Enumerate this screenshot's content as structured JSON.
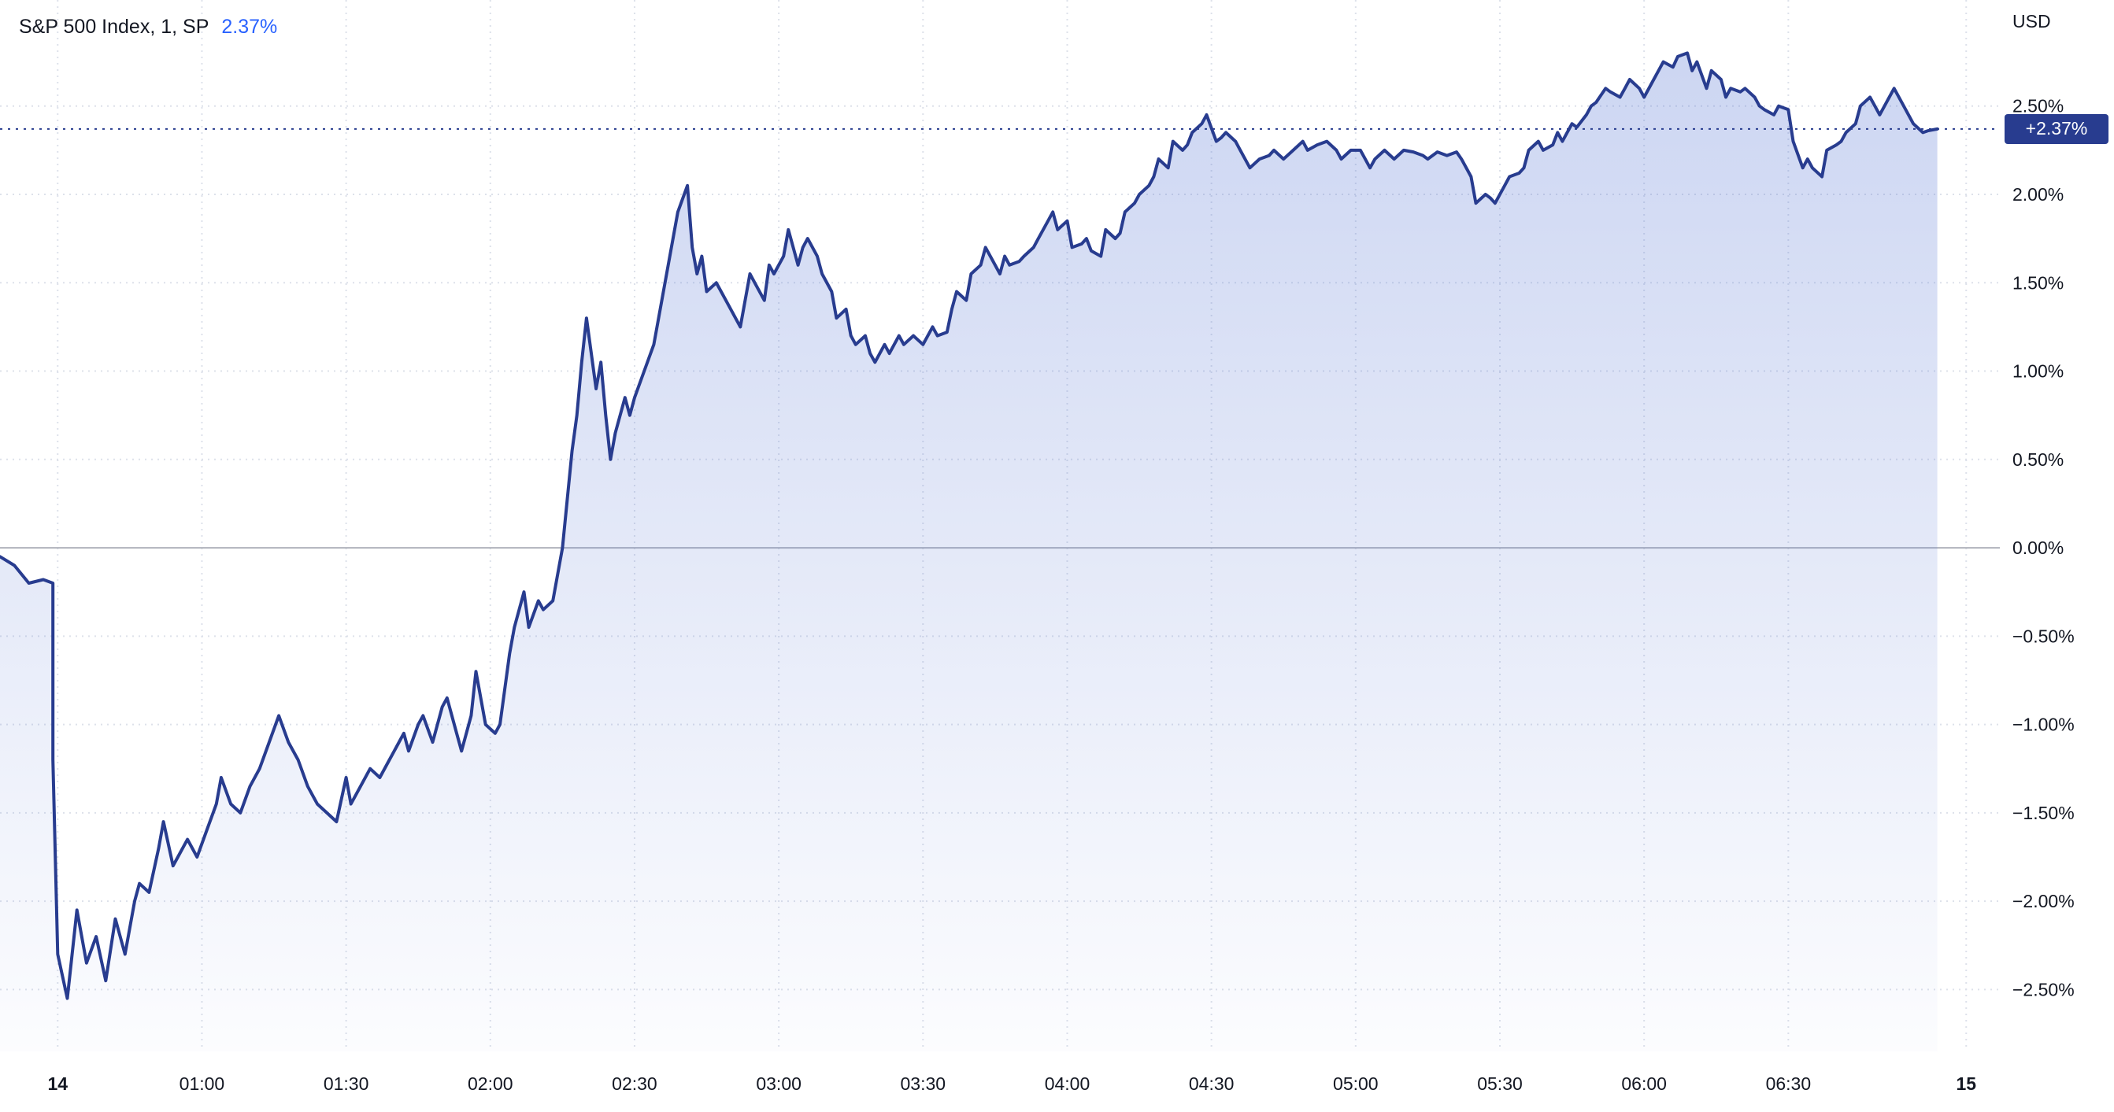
{
  "legend": {
    "title": "S&P 500 Index, 1, SP",
    "change": "2.37%"
  },
  "axis": {
    "currency": "USD",
    "current_value_label": "+2.37%"
  },
  "colors": {
    "line": "#283c8f",
    "badge_bg": "#283c8f",
    "accent_blue": "#2962ff",
    "grid": "#dde1ea",
    "zero_line": "#b0b3bc",
    "text": "#131722",
    "area_top": "rgba(87,118,212,0.30)",
    "area_bottom": "rgba(87,118,212,0.02)"
  },
  "chart_data": {
    "type": "area",
    "title": "S&P 500 Index, 1, SP — intraday percent change",
    "series_name": "S&P 500 Index",
    "x_unit": "minutes since 00:00",
    "y_unit": "percent change",
    "xlim_minutes": [
      18,
      434
    ],
    "ylim": [
      -2.85,
      3.1
    ],
    "grid": true,
    "legend_position": "top-left",
    "current": {
      "value": 2.37,
      "label": "+2.37%"
    },
    "zero_line": 0,
    "y_ticks": [
      {
        "v": 2.5,
        "label": "2.50%"
      },
      {
        "v": 2.0,
        "label": "2.00%"
      },
      {
        "v": 1.5,
        "label": "1.50%"
      },
      {
        "v": 1.0,
        "label": "1.00%"
      },
      {
        "v": 0.5,
        "label": "0.50%"
      },
      {
        "v": 0.0,
        "label": "0.00%"
      },
      {
        "v": -0.5,
        "label": "−0.50%"
      },
      {
        "v": -1.0,
        "label": "−1.00%"
      },
      {
        "v": -1.5,
        "label": "−1.50%"
      },
      {
        "v": -2.0,
        "label": "−2.00%"
      },
      {
        "v": -2.5,
        "label": "−2.50%"
      }
    ],
    "x_ticks": [
      {
        "t": 30,
        "label": "14",
        "bold": true
      },
      {
        "t": 60,
        "label": "01:00"
      },
      {
        "t": 90,
        "label": "01:30"
      },
      {
        "t": 120,
        "label": "02:00"
      },
      {
        "t": 150,
        "label": "02:30"
      },
      {
        "t": 180,
        "label": "03:00"
      },
      {
        "t": 210,
        "label": "03:30"
      },
      {
        "t": 240,
        "label": "04:00"
      },
      {
        "t": 270,
        "label": "04:30"
      },
      {
        "t": 300,
        "label": "05:00"
      },
      {
        "t": 330,
        "label": "05:30"
      },
      {
        "t": 360,
        "label": "06:00"
      },
      {
        "t": 390,
        "label": "06:30"
      },
      {
        "t": 427,
        "label": "15",
        "bold": true
      }
    ],
    "points": [
      [
        18,
        -0.05
      ],
      [
        21,
        -0.1
      ],
      [
        24,
        -0.2
      ],
      [
        27,
        -0.18
      ],
      [
        29,
        -0.2
      ],
      [
        29,
        -1.2
      ],
      [
        30,
        -2.3
      ],
      [
        32,
        -2.55
      ],
      [
        34,
        -2.05
      ],
      [
        36,
        -2.35
      ],
      [
        38,
        -2.2
      ],
      [
        40,
        -2.45
      ],
      [
        42,
        -2.1
      ],
      [
        44,
        -2.3
      ],
      [
        46,
        -2.0
      ],
      [
        47,
        -1.9
      ],
      [
        49,
        -1.95
      ],
      [
        51,
        -1.7
      ],
      [
        52,
        -1.55
      ],
      [
        54,
        -1.8
      ],
      [
        55,
        -1.75
      ],
      [
        57,
        -1.65
      ],
      [
        59,
        -1.75
      ],
      [
        61,
        -1.6
      ],
      [
        63,
        -1.45
      ],
      [
        64,
        -1.3
      ],
      [
        66,
        -1.45
      ],
      [
        68,
        -1.5
      ],
      [
        70,
        -1.35
      ],
      [
        72,
        -1.25
      ],
      [
        74,
        -1.1
      ],
      [
        76,
        -0.95
      ],
      [
        78,
        -1.1
      ],
      [
        80,
        -1.2
      ],
      [
        82,
        -1.35
      ],
      [
        84,
        -1.45
      ],
      [
        86,
        -1.5
      ],
      [
        88,
        -1.55
      ],
      [
        90,
        -1.3
      ],
      [
        91,
        -1.45
      ],
      [
        93,
        -1.35
      ],
      [
        95,
        -1.25
      ],
      [
        97,
        -1.3
      ],
      [
        99,
        -1.2
      ],
      [
        100,
        -1.15
      ],
      [
        102,
        -1.05
      ],
      [
        103,
        -1.15
      ],
      [
        105,
        -1.0
      ],
      [
        106,
        -0.95
      ],
      [
        108,
        -1.1
      ],
      [
        110,
        -0.9
      ],
      [
        111,
        -0.85
      ],
      [
        113,
        -1.05
      ],
      [
        114,
        -1.15
      ],
      [
        116,
        -0.95
      ],
      [
        117,
        -0.7
      ],
      [
        119,
        -1.0
      ],
      [
        121,
        -1.05
      ],
      [
        122,
        -1.0
      ],
      [
        124,
        -0.6
      ],
      [
        125,
        -0.45
      ],
      [
        127,
        -0.25
      ],
      [
        128,
        -0.45
      ],
      [
        130,
        -0.3
      ],
      [
        131,
        -0.35
      ],
      [
        133,
        -0.3
      ],
      [
        134,
        -0.15
      ],
      [
        135,
        0.0
      ],
      [
        137,
        0.55
      ],
      [
        138,
        0.75
      ],
      [
        139,
        1.05
      ],
      [
        140,
        1.3
      ],
      [
        142,
        0.9
      ],
      [
        143,
        1.05
      ],
      [
        144,
        0.75
      ],
      [
        145,
        0.5
      ],
      [
        146,
        0.65
      ],
      [
        148,
        0.85
      ],
      [
        149,
        0.75
      ],
      [
        150,
        0.85
      ],
      [
        152,
        1.0
      ],
      [
        154,
        1.15
      ],
      [
        155,
        1.3
      ],
      [
        157,
        1.6
      ],
      [
        158,
        1.75
      ],
      [
        159,
        1.9
      ],
      [
        161,
        2.05
      ],
      [
        162,
        1.7
      ],
      [
        163,
        1.55
      ],
      [
        164,
        1.65
      ],
      [
        165,
        1.45
      ],
      [
        167,
        1.5
      ],
      [
        168,
        1.45
      ],
      [
        170,
        1.35
      ],
      [
        171,
        1.3
      ],
      [
        172,
        1.25
      ],
      [
        174,
        1.55
      ],
      [
        175,
        1.5
      ],
      [
        177,
        1.4
      ],
      [
        178,
        1.6
      ],
      [
        179,
        1.55
      ],
      [
        181,
        1.65
      ],
      [
        182,
        1.8
      ],
      [
        184,
        1.6
      ],
      [
        185,
        1.7
      ],
      [
        186,
        1.75
      ],
      [
        188,
        1.65
      ],
      [
        189,
        1.55
      ],
      [
        191,
        1.45
      ],
      [
        192,
        1.3
      ],
      [
        194,
        1.35
      ],
      [
        195,
        1.2
      ],
      [
        196,
        1.15
      ],
      [
        198,
        1.2
      ],
      [
        199,
        1.1
      ],
      [
        200,
        1.05
      ],
      [
        202,
        1.15
      ],
      [
        203,
        1.1
      ],
      [
        205,
        1.2
      ],
      [
        206,
        1.15
      ],
      [
        208,
        1.2
      ],
      [
        210,
        1.15
      ],
      [
        212,
        1.25
      ],
      [
        213,
        1.2
      ],
      [
        215,
        1.22
      ],
      [
        216,
        1.35
      ],
      [
        217,
        1.45
      ],
      [
        219,
        1.4
      ],
      [
        220,
        1.55
      ],
      [
        222,
        1.6
      ],
      [
        223,
        1.7
      ],
      [
        224,
        1.65
      ],
      [
        226,
        1.55
      ],
      [
        227,
        1.65
      ],
      [
        228,
        1.6
      ],
      [
        230,
        1.62
      ],
      [
        231,
        1.65
      ],
      [
        233,
        1.7
      ],
      [
        234,
        1.75
      ],
      [
        236,
        1.85
      ],
      [
        237,
        1.9
      ],
      [
        238,
        1.8
      ],
      [
        240,
        1.85
      ],
      [
        241,
        1.7
      ],
      [
        243,
        1.72
      ],
      [
        244,
        1.75
      ],
      [
        245,
        1.68
      ],
      [
        247,
        1.65
      ],
      [
        248,
        1.8
      ],
      [
        250,
        1.75
      ],
      [
        251,
        1.78
      ],
      [
        252,
        1.9
      ],
      [
        254,
        1.95
      ],
      [
        255,
        2.0
      ],
      [
        257,
        2.05
      ],
      [
        258,
        2.1
      ],
      [
        259,
        2.2
      ],
      [
        261,
        2.15
      ],
      [
        262,
        2.3
      ],
      [
        264,
        2.25
      ],
      [
        265,
        2.28
      ],
      [
        266,
        2.35
      ],
      [
        268,
        2.4
      ],
      [
        269,
        2.45
      ],
      [
        271,
        2.3
      ],
      [
        272,
        2.32
      ],
      [
        273,
        2.35
      ],
      [
        275,
        2.3
      ],
      [
        276,
        2.25
      ],
      [
        278,
        2.15
      ],
      [
        280,
        2.2
      ],
      [
        282,
        2.22
      ],
      [
        283,
        2.25
      ],
      [
        285,
        2.2
      ],
      [
        287,
        2.25
      ],
      [
        289,
        2.3
      ],
      [
        290,
        2.25
      ],
      [
        292,
        2.28
      ],
      [
        294,
        2.3
      ],
      [
        296,
        2.25
      ],
      [
        297,
        2.2
      ],
      [
        299,
        2.25
      ],
      [
        301,
        2.25
      ],
      [
        303,
        2.15
      ],
      [
        304,
        2.2
      ],
      [
        306,
        2.25
      ],
      [
        308,
        2.2
      ],
      [
        310,
        2.25
      ],
      [
        312,
        2.24
      ],
      [
        314,
        2.22
      ],
      [
        315,
        2.2
      ],
      [
        317,
        2.24
      ],
      [
        319,
        2.22
      ],
      [
        321,
        2.24
      ],
      [
        322,
        2.2
      ],
      [
        324,
        2.1
      ],
      [
        325,
        1.95
      ],
      [
        327,
        2.0
      ],
      [
        328,
        1.98
      ],
      [
        329,
        1.95
      ],
      [
        331,
        2.05
      ],
      [
        332,
        2.1
      ],
      [
        334,
        2.12
      ],
      [
        335,
        2.15
      ],
      [
        336,
        2.25
      ],
      [
        338,
        2.3
      ],
      [
        339,
        2.25
      ],
      [
        341,
        2.28
      ],
      [
        342,
        2.35
      ],
      [
        343,
        2.3
      ],
      [
        345,
        2.4
      ],
      [
        346,
        2.38
      ],
      [
        348,
        2.45
      ],
      [
        349,
        2.5
      ],
      [
        350,
        2.52
      ],
      [
        352,
        2.6
      ],
      [
        353,
        2.58
      ],
      [
        355,
        2.55
      ],
      [
        356,
        2.6
      ],
      [
        357,
        2.65
      ],
      [
        359,
        2.6
      ],
      [
        360,
        2.55
      ],
      [
        362,
        2.65
      ],
      [
        363,
        2.7
      ],
      [
        364,
        2.75
      ],
      [
        366,
        2.72
      ],
      [
        367,
        2.78
      ],
      [
        369,
        2.8
      ],
      [
        370,
        2.7
      ],
      [
        371,
        2.75
      ],
      [
        373,
        2.6
      ],
      [
        374,
        2.7
      ],
      [
        376,
        2.65
      ],
      [
        377,
        2.55
      ],
      [
        378,
        2.6
      ],
      [
        380,
        2.58
      ],
      [
        381,
        2.6
      ],
      [
        383,
        2.55
      ],
      [
        384,
        2.5
      ],
      [
        385,
        2.48
      ],
      [
        387,
        2.45
      ],
      [
        388,
        2.5
      ],
      [
        390,
        2.48
      ],
      [
        391,
        2.3
      ],
      [
        393,
        2.15
      ],
      [
        394,
        2.2
      ],
      [
        395,
        2.15
      ],
      [
        397,
        2.1
      ],
      [
        398,
        2.25
      ],
      [
        400,
        2.28
      ],
      [
        401,
        2.3
      ],
      [
        402,
        2.35
      ],
      [
        404,
        2.4
      ],
      [
        405,
        2.5
      ],
      [
        407,
        2.55
      ],
      [
        408,
        2.5
      ],
      [
        409,
        2.45
      ],
      [
        411,
        2.55
      ],
      [
        412,
        2.6
      ],
      [
        414,
        2.5
      ],
      [
        415,
        2.45
      ],
      [
        416,
        2.4
      ],
      [
        418,
        2.35
      ],
      [
        419,
        2.36
      ],
      [
        421,
        2.37
      ]
    ]
  }
}
